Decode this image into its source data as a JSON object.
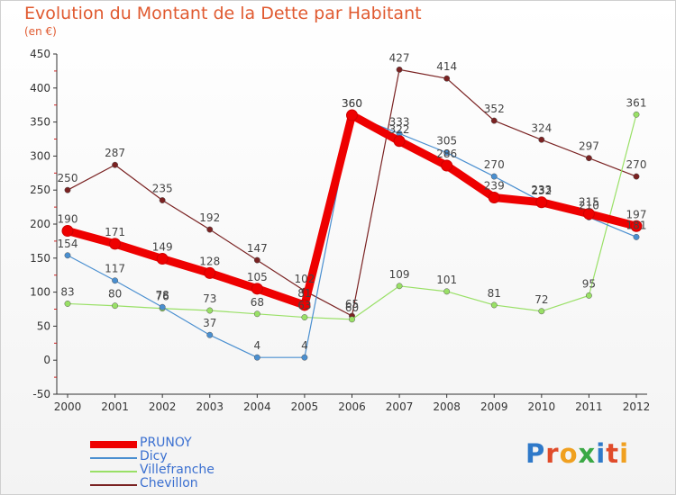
{
  "title": "Evolution du Montant de la Dette par Habitant",
  "unit_label": "(en €)",
  "logo": {
    "text": "Proxiti",
    "letter_colors": [
      "#2f79c9",
      "#e04b2a",
      "#f0a020",
      "#3aa845",
      "#2f79c9",
      "#e04b2a",
      "#f0a020"
    ]
  },
  "chart_data": {
    "type": "line",
    "x": [
      "2000",
      "2001",
      "2002",
      "2003",
      "2004",
      "2005",
      "2006",
      "2007",
      "2008",
      "2009",
      "2010",
      "2011",
      "2012"
    ],
    "ylim": [
      -50,
      450
    ],
    "yticks": [
      -50,
      0,
      50,
      100,
      150,
      200,
      250,
      300,
      350,
      400,
      450
    ],
    "grid": false,
    "legend_position": "bottom-left",
    "series": [
      {
        "name": "PRUNOY",
        "color": "#ee0000",
        "values": [
          190,
          171,
          149,
          128,
          105,
          81,
          360,
          322,
          286,
          239,
          232,
          215,
          197
        ]
      },
      {
        "name": "Dicy",
        "color": "#4a8fd0",
        "values": [
          154,
          117,
          78,
          37,
          4,
          4,
          360,
          333,
          305,
          270,
          233,
          210,
          181
        ]
      },
      {
        "name": "Villefranche",
        "color": "#99e066",
        "values": [
          83,
          80,
          76,
          73,
          68,
          63,
          60,
          109,
          101,
          81,
          72,
          95,
          361
        ]
      },
      {
        "name": "Chevillon",
        "color": "#7a2222",
        "values": [
          250,
          287,
          235,
          192,
          147,
          102,
          65,
          427,
          414,
          352,
          324,
          297,
          270
        ]
      }
    ]
  }
}
